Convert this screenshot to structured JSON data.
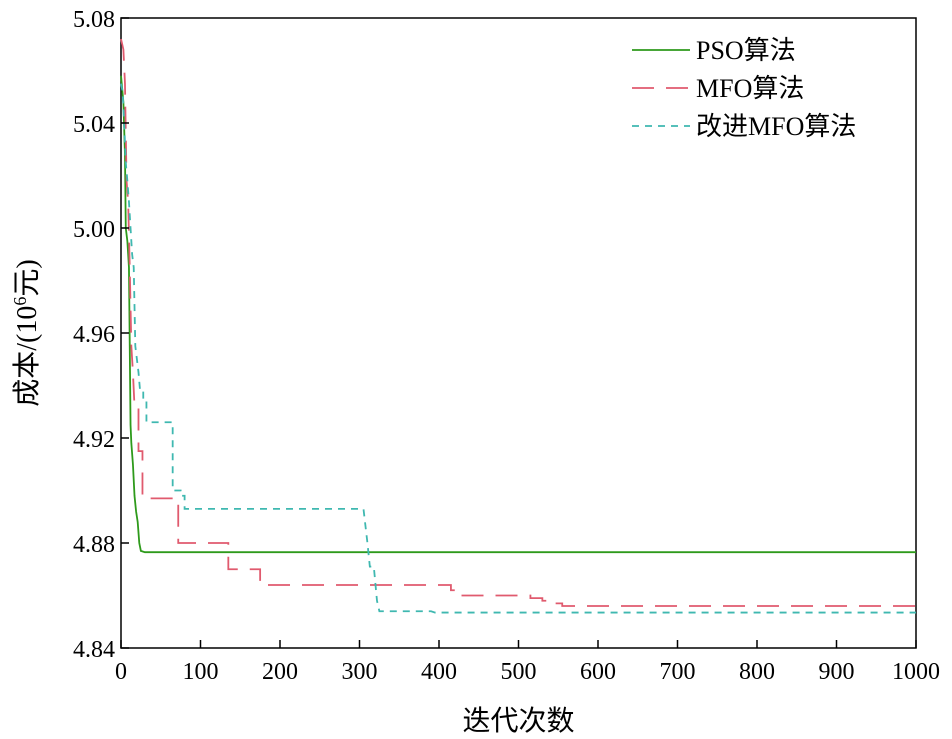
{
  "chart_data": {
    "type": "line",
    "title": "",
    "xlabel": "迭代次数",
    "ylabel": {
      "prefix": "成本/(10",
      "superscript": "6",
      "suffix": "元)"
    },
    "xlim": [
      0,
      1000
    ],
    "ylim": [
      4.84,
      5.08
    ],
    "xticks": [
      "0",
      "100",
      "200",
      "300",
      "400",
      "500",
      "600",
      "700",
      "800",
      "900",
      "1000"
    ],
    "yticks": [
      "4.84",
      "4.88",
      "4.92",
      "4.96",
      "5.00",
      "5.04",
      "5.08"
    ],
    "grid": false,
    "legend_position": "top-right",
    "series": [
      {
        "name": "PSO算法",
        "color": "#2e9a1b",
        "dash": "solid",
        "points": [
          [
            0,
            5.058
          ],
          [
            3,
            5.048
          ],
          [
            5,
            5.028
          ],
          [
            6,
            5.0
          ],
          [
            8,
            4.995
          ],
          [
            10,
            4.985
          ],
          [
            11,
            4.955
          ],
          [
            12,
            4.925
          ],
          [
            13,
            4.918
          ],
          [
            15,
            4.91
          ],
          [
            17,
            4.898
          ],
          [
            19,
            4.892
          ],
          [
            21,
            4.888
          ],
          [
            23,
            4.88
          ],
          [
            25,
            4.877
          ],
          [
            30,
            4.8765
          ],
          [
            1000,
            4.8765
          ]
        ]
      },
      {
        "name": "MFO算法",
        "color": "#e05a6e",
        "dash": "long-dash",
        "points": [
          [
            0,
            5.072
          ],
          [
            3,
            5.068
          ],
          [
            5,
            5.055
          ],
          [
            7,
            5.018
          ],
          [
            9,
            5.01
          ],
          [
            11,
            4.985
          ],
          [
            13,
            4.955
          ],
          [
            15,
            4.945
          ],
          [
            17,
            4.932
          ],
          [
            22,
            4.932
          ],
          [
            22,
            4.915
          ],
          [
            27,
            4.915
          ],
          [
            27,
            4.897
          ],
          [
            72,
            4.897
          ],
          [
            72,
            4.88
          ],
          [
            135,
            4.88
          ],
          [
            135,
            4.87
          ],
          [
            175,
            4.87
          ],
          [
            175,
            4.864
          ],
          [
            415,
            4.864
          ],
          [
            415,
            4.862
          ],
          [
            422,
            4.862
          ],
          [
            422,
            4.86
          ],
          [
            515,
            4.86
          ],
          [
            515,
            4.859
          ],
          [
            530,
            4.859
          ],
          [
            530,
            4.858
          ],
          [
            545,
            4.858
          ],
          [
            545,
            4.857
          ],
          [
            555,
            4.857
          ],
          [
            555,
            4.856
          ],
          [
            1000,
            4.856
          ]
        ]
      },
      {
        "name": "改进MFO算法",
        "color": "#3fb8b0",
        "dash": "short-dash",
        "points": [
          [
            0,
            5.055
          ],
          [
            2,
            5.052
          ],
          [
            4,
            5.04
          ],
          [
            6,
            5.025
          ],
          [
            8,
            5.018
          ],
          [
            10,
            5.01
          ],
          [
            12,
            5.0
          ],
          [
            14,
            4.99
          ],
          [
            16,
            4.985
          ],
          [
            18,
            4.955
          ],
          [
            20,
            4.95
          ],
          [
            22,
            4.945
          ],
          [
            24,
            4.938
          ],
          [
            28,
            4.938
          ],
          [
            28,
            4.935
          ],
          [
            32,
            4.935
          ],
          [
            32,
            4.926
          ],
          [
            65,
            4.926
          ],
          [
            65,
            4.9
          ],
          [
            75,
            4.9
          ],
          [
            75,
            4.898
          ],
          [
            80,
            4.898
          ],
          [
            80,
            4.893
          ],
          [
            305,
            4.893
          ],
          [
            310,
            4.88
          ],
          [
            313,
            4.871
          ],
          [
            318,
            4.871
          ],
          [
            322,
            4.858
          ],
          [
            325,
            4.854
          ],
          [
            390,
            4.854
          ],
          [
            395,
            4.8535
          ],
          [
            1000,
            4.8535
          ]
        ]
      }
    ]
  }
}
